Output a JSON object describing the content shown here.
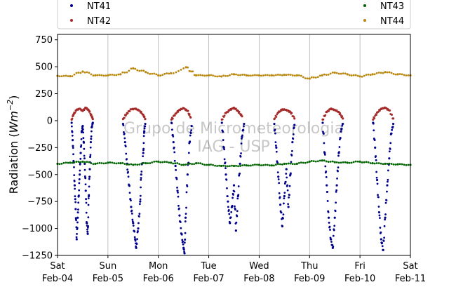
{
  "chart_data": {
    "type": "scatter",
    "title": "",
    "xlabel": "",
    "ylabel": "Radiation (W m^-2)",
    "ylabel_parts": {
      "prefix": "Radiation (",
      "unit_w": "Wm",
      "unit_exp": "−2",
      "suffix": ")"
    },
    "ylim": [
      -1250,
      800
    ],
    "yticks": [
      -1250,
      -1000,
      -750,
      -500,
      -250,
      0,
      250,
      500,
      750
    ],
    "ytick_labels": [
      "−1250",
      "−1000",
      "−750",
      "−500",
      "−250",
      "0",
      "250",
      "500",
      "750"
    ],
    "xlim": [
      "2024-02-04",
      "2024-02-11"
    ],
    "xticks": [
      {
        "day": "Sat",
        "date": "Feb-04"
      },
      {
        "day": "Sun",
        "date": "Feb-05"
      },
      {
        "day": "Mon",
        "date": "Feb-06"
      },
      {
        "day": "Tue",
        "date": "Feb-07"
      },
      {
        "day": "Wed",
        "date": "Feb-08"
      },
      {
        "day": "Thu",
        "date": "Feb-09"
      },
      {
        "day": "Fri",
        "date": "Feb-10"
      },
      {
        "day": "Sat",
        "date": "Feb-11"
      }
    ],
    "grid": "vertical",
    "legend_placement": "top",
    "watermark": [
      "Grupo de Micrometeorologia",
      "IAG - USP"
    ],
    "series": [
      {
        "name": "NT41",
        "color": "#00008b",
        "points": [
          [
            0.28,
            -20
          ],
          [
            0.3,
            -180
          ],
          [
            0.32,
            -380
          ],
          [
            0.34,
            -600
          ],
          [
            0.36,
            -820
          ],
          [
            0.38,
            -1100
          ],
          [
            0.4,
            -900
          ],
          [
            0.42,
            -700
          ],
          [
            0.44,
            -500
          ],
          [
            0.46,
            -300
          ],
          [
            0.48,
            -100
          ],
          [
            0.5,
            -50
          ],
          [
            0.52,
            -200
          ],
          [
            0.54,
            -400
          ],
          [
            0.56,
            -650
          ],
          [
            0.58,
            -950
          ],
          [
            0.6,
            -1050
          ],
          [
            0.62,
            -700
          ],
          [
            0.64,
            -450
          ],
          [
            0.66,
            -200
          ],
          [
            0.68,
            -60
          ],
          [
            0.7,
            -20
          ],
          [
            1.3,
            -30
          ],
          [
            1.34,
            -200
          ],
          [
            1.38,
            -400
          ],
          [
            1.42,
            -600
          ],
          [
            1.46,
            -800
          ],
          [
            1.5,
            -950
          ],
          [
            1.54,
            -1100
          ],
          [
            1.56,
            -1180
          ],
          [
            1.6,
            -1000
          ],
          [
            1.64,
            -750
          ],
          [
            1.66,
            -500
          ],
          [
            1.7,
            -300
          ],
          [
            1.72,
            -100
          ],
          [
            1.74,
            -30
          ],
          [
            2.26,
            -20
          ],
          [
            2.3,
            -200
          ],
          [
            2.34,
            -420
          ],
          [
            2.38,
            -650
          ],
          [
            2.42,
            -880
          ],
          [
            2.46,
            -1050
          ],
          [
            2.5,
            -1180
          ],
          [
            2.52,
            -1230
          ],
          [
            2.54,
            -900
          ],
          [
            2.58,
            -500
          ],
          [
            2.62,
            -200
          ],
          [
            2.66,
            -50
          ],
          [
            3.26,
            -20
          ],
          [
            3.3,
            -250
          ],
          [
            3.34,
            -500
          ],
          [
            3.38,
            -750
          ],
          [
            3.42,
            -950
          ],
          [
            3.46,
            -800
          ],
          [
            3.5,
            -600
          ],
          [
            3.54,
            -1020
          ],
          [
            3.58,
            -700
          ],
          [
            3.62,
            -400
          ],
          [
            3.66,
            -150
          ],
          [
            3.7,
            -30
          ],
          [
            4.3,
            -30
          ],
          [
            4.34,
            -250
          ],
          [
            4.38,
            -520
          ],
          [
            4.42,
            -780
          ],
          [
            4.46,
            -980
          ],
          [
            4.5,
            -700
          ],
          [
            4.54,
            -450
          ],
          [
            4.58,
            -800
          ],
          [
            4.62,
            -500
          ],
          [
            4.66,
            -200
          ],
          [
            4.7,
            -40
          ],
          [
            5.26,
            -20
          ],
          [
            5.3,
            -300
          ],
          [
            5.34,
            -600
          ],
          [
            5.38,
            -900
          ],
          [
            5.42,
            -1100
          ],
          [
            5.46,
            -1180
          ],
          [
            5.5,
            -900
          ],
          [
            5.54,
            -600
          ],
          [
            5.58,
            -300
          ],
          [
            5.62,
            -100
          ],
          [
            5.66,
            -30
          ],
          [
            6.26,
            -20
          ],
          [
            6.3,
            -250
          ],
          [
            6.34,
            -550
          ],
          [
            6.38,
            -850
          ],
          [
            6.42,
            -1100
          ],
          [
            6.46,
            -1200
          ],
          [
            6.5,
            -900
          ],
          [
            6.54,
            -600
          ],
          [
            6.58,
            -350
          ],
          [
            6.62,
            -120
          ],
          [
            6.66,
            -30
          ]
        ]
      },
      {
        "name": "NT42",
        "color": "#a52a2a",
        "points": [
          [
            0.28,
            10
          ],
          [
            0.32,
            60
          ],
          [
            0.38,
            100
          ],
          [
            0.44,
            110
          ],
          [
            0.5,
            90
          ],
          [
            0.56,
            120
          ],
          [
            0.62,
            95
          ],
          [
            0.68,
            40
          ],
          [
            0.7,
            15
          ],
          [
            1.3,
            15
          ],
          [
            1.38,
            70
          ],
          [
            1.46,
            105
          ],
          [
            1.54,
            110
          ],
          [
            1.62,
            95
          ],
          [
            1.7,
            55
          ],
          [
            1.74,
            15
          ],
          [
            2.26,
            10
          ],
          [
            2.34,
            65
          ],
          [
            2.42,
            100
          ],
          [
            2.5,
            115
          ],
          [
            2.58,
            90
          ],
          [
            2.64,
            30
          ],
          [
            3.26,
            10
          ],
          [
            3.34,
            70
          ],
          [
            3.42,
            100
          ],
          [
            3.5,
            120
          ],
          [
            3.58,
            90
          ],
          [
            3.66,
            40
          ],
          [
            4.3,
            15
          ],
          [
            4.38,
            75
          ],
          [
            4.46,
            105
          ],
          [
            4.54,
            100
          ],
          [
            4.62,
            80
          ],
          [
            4.7,
            20
          ],
          [
            5.26,
            10
          ],
          [
            5.34,
            80
          ],
          [
            5.42,
            110
          ],
          [
            5.5,
            100
          ],
          [
            5.58,
            80
          ],
          [
            5.66,
            20
          ],
          [
            6.26,
            10
          ],
          [
            6.34,
            75
          ],
          [
            6.42,
            110
          ],
          [
            6.5,
            120
          ],
          [
            6.58,
            95
          ],
          [
            6.66,
            20
          ]
        ]
      },
      {
        "name": "NT43",
        "color": "#006400",
        "points": [
          [
            0,
            -400
          ],
          [
            0.25,
            -390
          ],
          [
            0.5,
            -380
          ],
          [
            0.75,
            -400
          ],
          [
            1,
            -390
          ],
          [
            1.25,
            -395
          ],
          [
            1.5,
            -410
          ],
          [
            1.75,
            -395
          ],
          [
            2,
            -380
          ],
          [
            2.25,
            -390
          ],
          [
            2.5,
            -410
          ],
          [
            2.75,
            -395
          ],
          [
            3,
            -410
          ],
          [
            3.25,
            -420
          ],
          [
            3.5,
            -420
          ],
          [
            3.75,
            -415
          ],
          [
            4,
            -410
          ],
          [
            4.25,
            -415
          ],
          [
            4.5,
            -400
          ],
          [
            4.75,
            -400
          ],
          [
            5,
            -380
          ],
          [
            5.25,
            -370
          ],
          [
            5.5,
            -385
          ],
          [
            5.75,
            -390
          ],
          [
            6,
            -380
          ],
          [
            6.25,
            -395
          ],
          [
            6.5,
            -400
          ],
          [
            6.75,
            -405
          ],
          [
            7,
            -410
          ]
        ]
      },
      {
        "name": "NT44",
        "color": "#b8860b",
        "points": [
          [
            0,
            415
          ],
          [
            0.25,
            412
          ],
          [
            0.5,
            455
          ],
          [
            0.75,
            420
          ],
          [
            1,
            420
          ],
          [
            1.25,
            430
          ],
          [
            1.5,
            485
          ],
          [
            1.75,
            450
          ],
          [
            2,
            420
          ],
          [
            2.25,
            440
          ],
          [
            2.55,
            495
          ],
          [
            2.75,
            420
          ],
          [
            3,
            420
          ],
          [
            3.25,
            410
          ],
          [
            3.5,
            430
          ],
          [
            3.75,
            420
          ],
          [
            4,
            420
          ],
          [
            4.25,
            420
          ],
          [
            4.5,
            425
          ],
          [
            4.75,
            420
          ],
          [
            5,
            390
          ],
          [
            5.25,
            420
          ],
          [
            5.5,
            445
          ],
          [
            5.75,
            430
          ],
          [
            6,
            410
          ],
          [
            6.25,
            430
          ],
          [
            6.5,
            450
          ],
          [
            6.75,
            430
          ],
          [
            7,
            420
          ]
        ]
      }
    ]
  }
}
